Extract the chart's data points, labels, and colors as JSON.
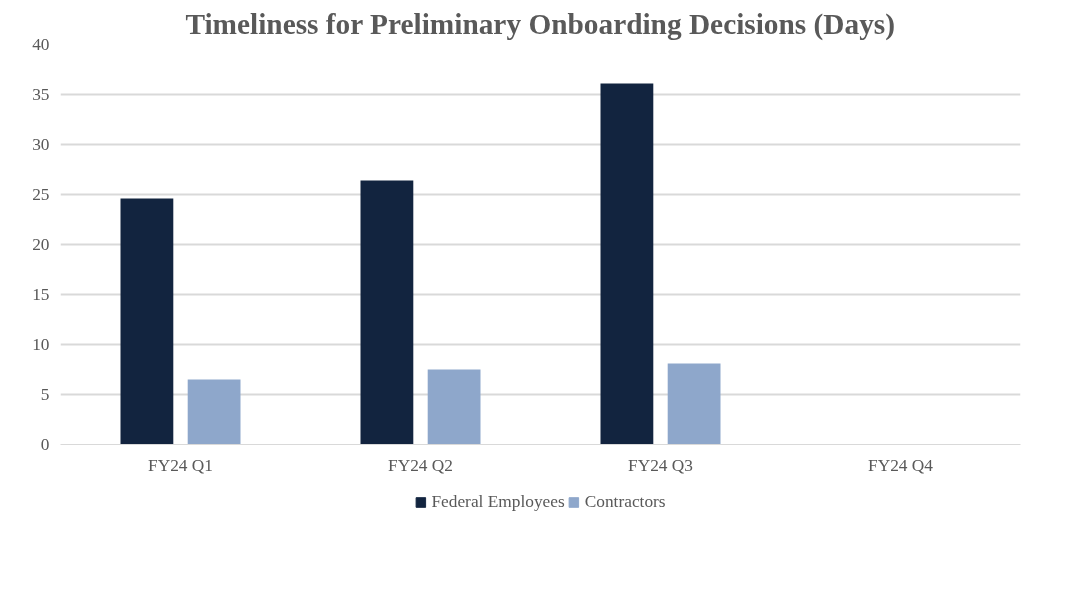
{
  "chart_data": {
    "type": "bar",
    "title": "Timeliness for Preliminary Onboarding Decisions (Days)",
    "categories": [
      "FY24 Q1",
      "FY24 Q2",
      "FY24 Q3",
      "FY24 Q4"
    ],
    "series": [
      {
        "name": "Federal Employees",
        "color": "#12243f",
        "values": [
          24.6,
          26.4,
          36.1,
          null
        ]
      },
      {
        "name": "Contractors",
        "color": "#8ea7cb",
        "values": [
          6.5,
          7.5,
          8.1,
          null
        ]
      }
    ],
    "ylim": [
      0,
      40
    ],
    "yticks": [
      0,
      5,
      10,
      15,
      20,
      25,
      30,
      35,
      40
    ],
    "grid": "y",
    "legend": "bottom"
  }
}
